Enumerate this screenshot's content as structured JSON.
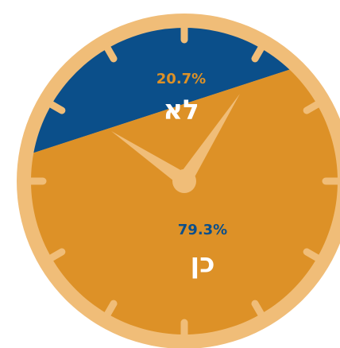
{
  "chart_data": {
    "type": "pie",
    "categories": [
      "לא",
      "כן"
    ],
    "values": [
      20.7,
      79.3
    ],
    "value_labels": [
      "20.7%",
      "79.3%"
    ],
    "colors": [
      "#0b4f8a",
      "#dd9127"
    ]
  }
}
